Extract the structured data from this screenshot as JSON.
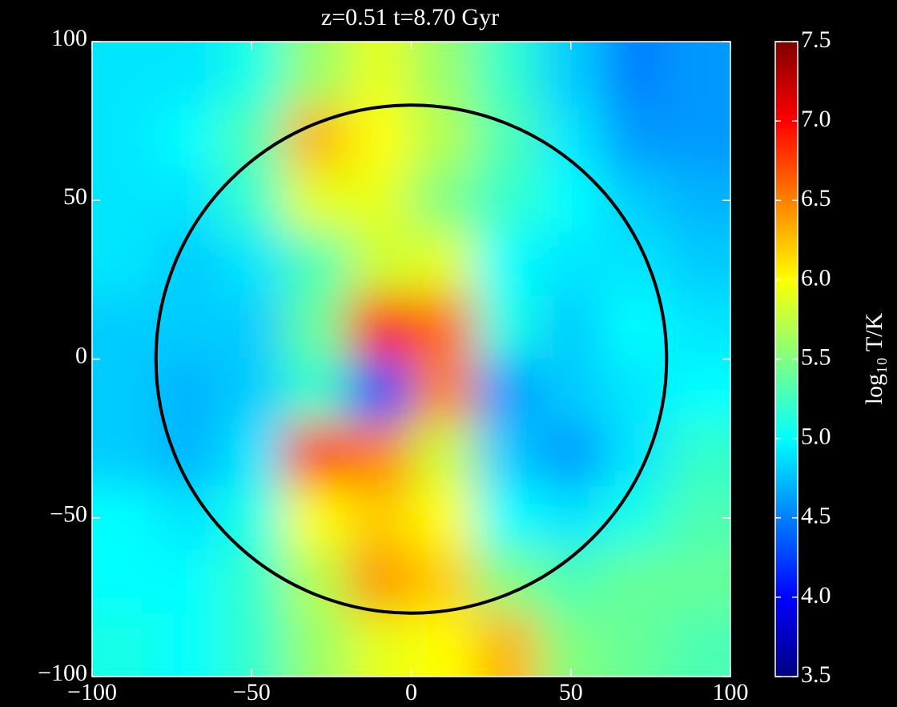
{
  "chart_data": {
    "type": "heatmap",
    "title": "z=0.51 t=8.70 Gyr",
    "colormap": "jet",
    "xlim": [
      -100,
      100
    ],
    "ylim": [
      -100,
      100
    ],
    "xticks": [
      {
        "value": -100,
        "label": "−100"
      },
      {
        "value": -50,
        "label": "−50"
      },
      0,
      50,
      100
    ],
    "yticks": [
      {
        "value": -100,
        "label": "−100"
      },
      {
        "value": -50,
        "label": "−50"
      },
      0,
      50,
      100
    ],
    "x": [
      -90,
      -70,
      -50,
      -30,
      -10,
      10,
      30,
      50,
      70,
      90
    ],
    "y": [
      90,
      70,
      50,
      30,
      10,
      -10,
      -30,
      -50,
      -70,
      -90
    ],
    "z": [
      [
        4.9,
        4.9,
        5.1,
        5.6,
        5.9,
        5.6,
        5.2,
        4.8,
        4.5,
        4.6
      ],
      [
        4.9,
        5.0,
        5.3,
        6.3,
        6.0,
        5.7,
        5.3,
        4.9,
        4.6,
        4.6
      ],
      [
        4.9,
        4.9,
        5.2,
        5.9,
        5.9,
        5.5,
        5.2,
        5.0,
        4.8,
        4.7
      ],
      [
        4.9,
        4.8,
        4.9,
        5.3,
        5.8,
        5.9,
        5.0,
        4.9,
        4.9,
        4.8
      ],
      [
        4.8,
        4.8,
        4.8,
        5.4,
        7.0,
        6.6,
        5.1,
        4.8,
        5.0,
        4.9
      ],
      [
        4.8,
        4.7,
        4.8,
        5.2,
        4.3,
        6.5,
        4.6,
        4.8,
        4.9,
        5.0
      ],
      [
        4.8,
        4.7,
        4.9,
        6.8,
        6.5,
        5.8,
        4.8,
        4.6,
        4.9,
        5.2
      ],
      [
        5.0,
        4.9,
        5.1,
        6.0,
        6.2,
        6.0,
        5.0,
        4.9,
        5.1,
        5.3
      ],
      [
        5.0,
        5.0,
        5.2,
        5.7,
        6.4,
        6.2,
        5.5,
        5.3,
        5.4,
        5.4
      ],
      [
        5.1,
        5.0,
        5.2,
        5.6,
        5.9,
        6.0,
        6.3,
        5.5,
        5.4,
        5.3
      ]
    ],
    "circle": {
      "x": 0,
      "y": 0,
      "r": 80
    },
    "colorbar": {
      "label": "log₁₀ T/K",
      "clim": [
        3.5,
        7.5
      ],
      "ticks": [
        3.5,
        {
          "value": 4,
          "label": "4.0"
        },
        4.5,
        {
          "value": 5,
          "label": "5.0"
        },
        5.5,
        {
          "value": 6,
          "label": "6.0"
        },
        6.5,
        {
          "value": 7,
          "label": "7.0"
        },
        7.5
      ]
    }
  }
}
